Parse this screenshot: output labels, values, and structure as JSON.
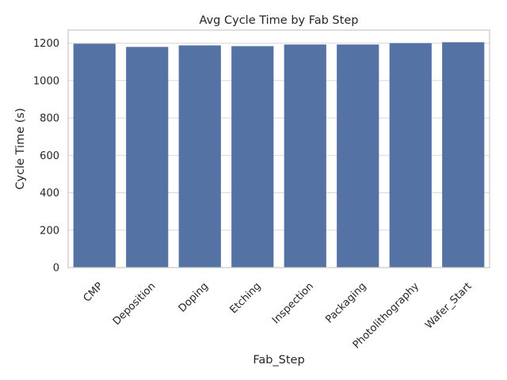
{
  "chart_data": {
    "type": "bar",
    "title": "Avg Cycle Time by Fab Step",
    "xlabel": "Fab_Step",
    "ylabel": "Cycle Time (s)",
    "categories": [
      "CMP",
      "Deposition",
      "Doping",
      "Etching",
      "Inspection",
      "Packaging",
      "Photolithography",
      "Wafer_Start"
    ],
    "values": [
      1197,
      1180,
      1188,
      1184,
      1193,
      1193,
      1200,
      1205
    ],
    "ylim": [
      0,
      1270
    ],
    "yticks": [
      0,
      200,
      400,
      600,
      800,
      1000,
      1200
    ],
    "grid": true,
    "colors": {
      "bar": "#5572a4",
      "grid": "#d9d9d9"
    }
  }
}
